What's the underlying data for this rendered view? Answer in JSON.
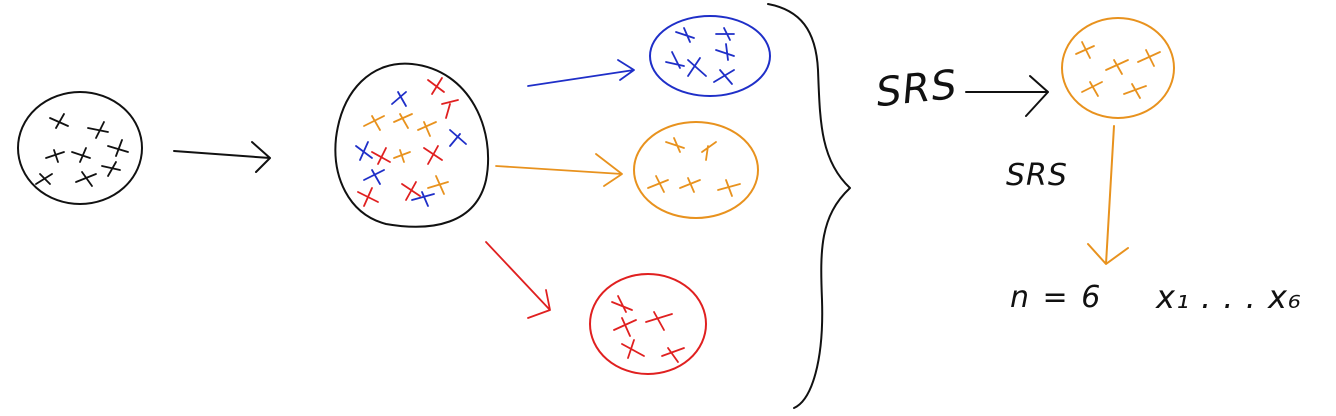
{
  "colors": {
    "black": "#111111",
    "blue": "#1f2fc8",
    "orange": "#e8921e",
    "red": "#e02020",
    "background": "#ffffff"
  },
  "labels": {
    "srs_main": "SRS",
    "srs_sub": "SRS",
    "sample_size": "n = 6",
    "observations": "x₁ . . . x₆"
  }
}
